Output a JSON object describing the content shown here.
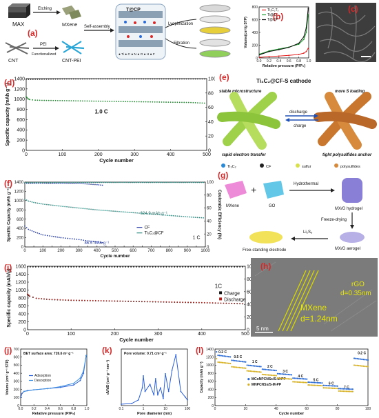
{
  "figure": {
    "panel_a": {
      "letter": "(a)",
      "steps": [
        "MAX",
        "MXene",
        "CNT",
        "CNT-PEI",
        "T@CP"
      ],
      "arrows": [
        "Etching",
        "PEI",
        "Functionalized",
        "Self-assembly",
        "Lyophilization",
        "Filtration"
      ],
      "legend": "● Ti ● C ● N ● O ● H ● F"
    },
    "panel_c": {
      "letter": "(c)"
    },
    "panel_e": {
      "letter": "(e)",
      "title": "Ti₃C₂@CF-S cathode",
      "labels": [
        "stable microstructure",
        "rapid electron transfer",
        "more S loading",
        "tight polysulfides anchor",
        "discharge",
        "charge"
      ],
      "legend": [
        "Ti₃C₂",
        "CF",
        "sulfur",
        "polysulfides"
      ]
    },
    "panel_g": {
      "letter": "(g)",
      "labels": [
        "MXene",
        "GO",
        "Hydrothermal",
        "MX/G hydrogel",
        "Freeze-drying",
        "MX/G aerogel",
        "Li₂S₆",
        "Free-standing electrode"
      ]
    },
    "panel_h": {
      "letter": "(h)",
      "labels": [
        "rGO",
        "d=0.35nm",
        "MXene",
        "d=1.24nm",
        "5 nm"
      ]
    }
  },
  "chart_data": [
    {
      "id": "b",
      "letter": "(b)",
      "type": "line",
      "xlabel": "Relative pressure (P/P₀)",
      "ylabel": "Volume(cm³/g STP)",
      "xlim": [
        0,
        1.0
      ],
      "ylim": [
        0,
        800
      ],
      "xticks": [
        "0.0",
        "0.2",
        "0.4",
        "0.6",
        "0.8",
        "1.0"
      ],
      "yticks": [
        "0",
        "200",
        "400",
        "600",
        "800"
      ],
      "series": [
        {
          "name": "Ti₃C₂Tₓ",
          "color": "#e21b1b",
          "x": [
            0.01,
            0.2,
            0.4,
            0.6,
            0.8,
            0.9,
            0.95,
            0.99
          ],
          "y": [
            10,
            20,
            30,
            40,
            55,
            75,
            100,
            150
          ]
        },
        {
          "name": "Ti@C",
          "color": "#1a9a2a",
          "x": [
            0.01,
            0.2,
            0.4,
            0.6,
            0.8,
            0.9,
            0.95,
            0.99
          ],
          "y": [
            60,
            110,
            140,
            170,
            215,
            290,
            400,
            680
          ]
        },
        {
          "name": "T@CP",
          "color": "#111111",
          "x": [
            0.01,
            0.2,
            0.4,
            0.6,
            0.8,
            0.9,
            0.95,
            0.99
          ],
          "y": [
            50,
            100,
            130,
            165,
            230,
            330,
            470,
            780
          ]
        }
      ]
    },
    {
      "id": "d",
      "letter": "(d)",
      "type": "scatter",
      "xlabel": "Cycle number",
      "ylabel": "Specific capacity (mAh g⁻¹)",
      "y2label": "Coulombic efficiency (%)",
      "xlim": [
        0,
        500
      ],
      "ylim": [
        0,
        1400
      ],
      "y2lim": [
        0,
        100
      ],
      "xticks": [
        "0",
        "100",
        "200",
        "300",
        "400",
        "500"
      ],
      "yticks": [
        "0",
        "200",
        "400",
        "600",
        "800",
        "1000",
        "1200",
        "1400"
      ],
      "y2ticks": [
        "0",
        "20",
        "40",
        "60",
        "80",
        "100"
      ],
      "annotation": "1.0 C",
      "series": [
        {
          "name": "Specific capacity",
          "color": "#1e8a2e",
          "x": [
            0,
            5,
            10,
            25,
            50,
            100,
            150,
            200,
            250,
            300,
            350,
            400,
            450,
            500
          ],
          "y": [
            1050,
            1010,
            990,
            980,
            975,
            970,
            965,
            960,
            955,
            950,
            945,
            940,
            935,
            920
          ]
        },
        {
          "name": "Coulombic efficiency",
          "color": "#222222",
          "axis": "y2",
          "x": [
            0,
            100,
            200,
            300,
            400,
            500
          ],
          "y": [
            99,
            99.5,
            99.6,
            99.6,
            99.6,
            99.6
          ]
        }
      ]
    },
    {
      "id": "f",
      "letter": "(f)",
      "type": "scatter",
      "xlabel": "Cycle number",
      "ylabel": "Specific Capacity (mAh g⁻¹)",
      "y2label": "Coulombic Efficiency (%)",
      "xlim": [
        0,
        1000
      ],
      "ylim": [
        0,
        1400
      ],
      "y2lim": [
        0,
        100
      ],
      "xticks": [
        "0",
        "50",
        "100",
        "150",
        "200",
        "250",
        "300",
        "350",
        "400",
        "450",
        "500",
        "550",
        "600",
        "650",
        "700",
        "750",
        "800",
        "850",
        "900",
        "950",
        "1000"
      ],
      "yticks": [
        "0",
        "200",
        "400",
        "600",
        "800",
        "1000",
        "1200",
        "1400"
      ],
      "y2ticks": [
        "0",
        "20",
        "40",
        "60",
        "80",
        "100"
      ],
      "annotations": [
        "624.9 mAh g⁻¹",
        "86.5 mAh g⁻¹",
        "1 C"
      ],
      "series": [
        {
          "name": "CF",
          "color": "#2a3fa8",
          "x": [
            0,
            20,
            50,
            100,
            150,
            200,
            250,
            300,
            350,
            400,
            440
          ],
          "y": [
            450,
            380,
            330,
            260,
            230,
            200,
            180,
            160,
            130,
            110,
            86.5
          ]
        },
        {
          "name": "Ti₃C₂@CF",
          "color": "#2a8a80",
          "x": [
            0,
            20,
            50,
            100,
            200,
            300,
            400,
            500,
            600,
            700,
            800,
            900,
            1000
          ],
          "y": [
            1030,
            990,
            960,
            925,
            880,
            840,
            800,
            770,
            740,
            710,
            680,
            650,
            624.9
          ]
        },
        {
          "name": "CE (CF)",
          "color": "#2a3fa8",
          "axis": "y2",
          "x": [
            0,
            100,
            200,
            300,
            400,
            440
          ],
          "y": [
            98,
            98,
            98,
            98,
            96,
            95
          ]
        },
        {
          "name": "CE (Ti₃C₂@CF)",
          "color": "#2a8a80",
          "axis": "y2",
          "x": [
            0,
            250,
            500,
            750,
            1000
          ],
          "y": [
            99,
            99.5,
            99.5,
            99.5,
            99.5
          ]
        }
      ]
    },
    {
      "id": "i",
      "letter": "(i)",
      "type": "scatter",
      "xlabel": "Cycle number",
      "ylabel": "Specific capacity (mAh/g)",
      "y2label": "Coulombic efficiency (%)",
      "xlim": [
        0,
        500
      ],
      "ylim": [
        0,
        1600
      ],
      "y2lim": [
        0,
        100
      ],
      "xticks": [
        "0",
        "100",
        "200",
        "300",
        "400",
        "500"
      ],
      "yticks": [
        "0",
        "200",
        "400",
        "600",
        "800",
        "1000",
        "1200",
        "1400",
        "1600"
      ],
      "y2ticks": [
        "0",
        "20",
        "40",
        "60",
        "80",
        "100"
      ],
      "annotation": "1C",
      "series": [
        {
          "name": "Charge",
          "color": "#111111",
          "x": [
            0,
            5,
            20,
            50,
            100,
            200,
            300,
            400,
            500
          ],
          "y": [
            880,
            840,
            790,
            760,
            740,
            720,
            700,
            680,
            650
          ]
        },
        {
          "name": "Discharge",
          "color": "#b0201a",
          "x": [
            0,
            5,
            20,
            50,
            100,
            200,
            300,
            400,
            500
          ],
          "y": [
            900,
            850,
            795,
            765,
            745,
            725,
            705,
            685,
            655
          ]
        },
        {
          "name": "Coulombic efficiency",
          "color": "#111111",
          "axis": "y2",
          "x": [
            0,
            100,
            200,
            300,
            400,
            500
          ],
          "y": [
            99,
            99,
            99,
            99,
            99,
            99
          ]
        }
      ]
    },
    {
      "id": "j",
      "letter": "(j)",
      "type": "line",
      "title": "BET surface area: 726.6 m² g⁻¹",
      "xlabel": "Relative pressure (P/P₀)",
      "ylabel": "Volume (cm³ g⁻¹ STP)",
      "xlim": [
        0,
        1.0
      ],
      "ylim": [
        0,
        700
      ],
      "xticks": [
        "0.0",
        "0.2",
        "0.4",
        "0.6",
        "0.8",
        "1.0"
      ],
      "yticks": [
        "0",
        "100",
        "200",
        "300",
        "400",
        "500",
        "600",
        "700"
      ],
      "series": [
        {
          "name": "Adsorption",
          "color": "#2b5fd6",
          "x": [
            0.0,
            0.02,
            0.05,
            0.1,
            0.2,
            0.4,
            0.6,
            0.8,
            0.9,
            0.95,
            0.99
          ],
          "y": [
            100,
            150,
            175,
            185,
            195,
            210,
            225,
            255,
            310,
            400,
            620
          ]
        },
        {
          "name": "Desorption",
          "color": "#3d8fe0",
          "x": [
            0.99,
            0.95,
            0.9,
            0.8,
            0.6,
            0.45,
            0.4,
            0.2,
            0.05
          ],
          "y": [
            620,
            430,
            340,
            275,
            235,
            215,
            210,
            195,
            175
          ]
        }
      ]
    },
    {
      "id": "k",
      "letter": "(k)",
      "type": "line",
      "title": "Pore volume: 0.71 cm³ g⁻¹",
      "xlabel": "Pore diameter (nm)",
      "ylabel": "dV/dD (cm³ g⁻¹ nm⁻¹)",
      "xlim": [
        0.1,
        100
      ],
      "ylim": [
        0,
        0.8
      ],
      "xscale": "log",
      "xticks": [
        "0.1",
        "1",
        "10",
        "100"
      ],
      "series": [
        {
          "name": "Pore size distribution",
          "color": "#2b5fd6",
          "x": [
            0.1,
            0.3,
            0.6,
            0.9,
            1.0,
            1.2,
            2,
            3,
            3.6,
            4.5,
            6,
            8,
            10,
            14,
            20,
            30,
            50,
            80,
            100
          ],
          "y": [
            0.02,
            0.03,
            0.08,
            0.25,
            0.42,
            0.2,
            0.3,
            0.15,
            0.38,
            0.15,
            0.25,
            0.1,
            0.45,
            0.2,
            0.5,
            0.72,
            0.2,
            0.12,
            0.08
          ]
        }
      ]
    },
    {
      "id": "l",
      "letter": "(l)",
      "type": "scatter",
      "xlabel": "Cycle number",
      "ylabel": "Capacity (mAh g⁻¹)",
      "xlim": [
        0,
        100
      ],
      "ylim": [
        0,
        1400
      ],
      "xticks": [
        "0",
        "20",
        "40",
        "60",
        "80",
        "100"
      ],
      "yticks": [
        "0",
        "200",
        "400",
        "600",
        "800",
        "1000",
        "1200",
        "1400"
      ],
      "rate_labels": [
        {
          "label": "0.2 C",
          "x": 5,
          "y": 1300
        },
        {
          "label": "0.5 C",
          "x": 15,
          "y": 1180
        },
        {
          "label": "1 C",
          "x": 26,
          "y": 1060
        },
        {
          "label": "2 C",
          "x": 36,
          "y": 940
        },
        {
          "label": "3 C",
          "x": 46,
          "y": 820
        },
        {
          "label": "4 C",
          "x": 56,
          "y": 700
        },
        {
          "label": "5 C",
          "x": 66,
          "y": 610
        },
        {
          "label": "6 C",
          "x": 76,
          "y": 520
        },
        {
          "label": "7 C",
          "x": 86,
          "y": 430
        },
        {
          "label": "0.2 C",
          "x": 96,
          "y": 1270
        }
      ],
      "series": [
        {
          "name": "MCoNPCNSs/S-M-PP",
          "color": "#2b6bd6",
          "steps": [
            1250,
            1120,
            1000,
            900,
            790,
            680,
            580,
            500,
            420,
            1170
          ]
        },
        {
          "name": "MNPCNSs/S-M-PP",
          "color": "#d6b020",
          "steps": [
            1080,
            960,
            860,
            770,
            680,
            590,
            510,
            440,
            360,
            1000
          ]
        }
      ]
    }
  ]
}
